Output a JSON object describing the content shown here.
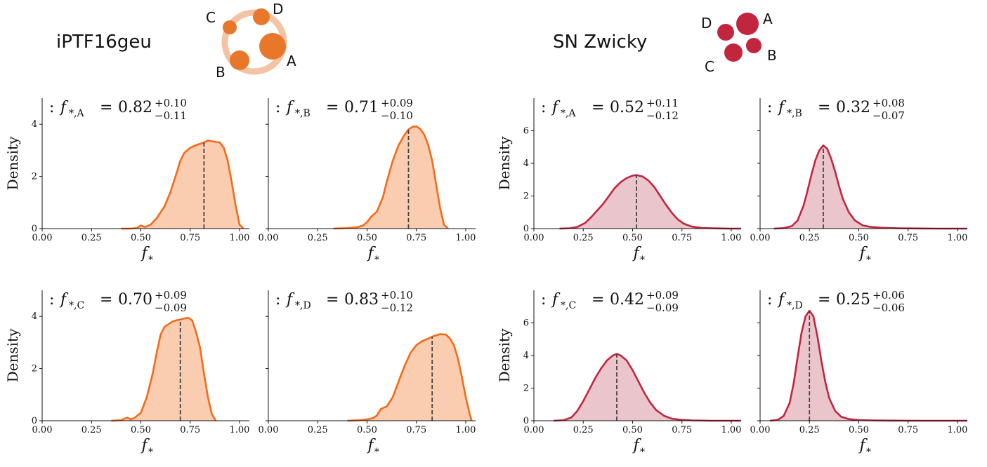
{
  "figure": {
    "groups": [
      {
        "title": "iPTF16geu",
        "color": "#f26b1d",
        "fill": "#fbcdb0",
        "diagram_color": "#e8772a",
        "ring_color": "#f3c3a3",
        "image_labels": [
          "A",
          "B",
          "C",
          "D"
        ]
      },
      {
        "title": "SN Zwicky",
        "color": "#c1263e",
        "fill": "#ebc5cc",
        "diagram_color": "#c1263e",
        "image_labels": [
          "A",
          "B",
          "C",
          "D"
        ]
      }
    ]
  },
  "chart_data": [
    {
      "type": "area",
      "group": "iPTF16geu",
      "image": "A",
      "annotation": {
        "prefix": ":",
        "symbol": "f",
        "sub": "*,A",
        "median": "0.82",
        "plus": "+0.10",
        "minus": "−0.11"
      },
      "median_value": 0.82,
      "xlabel": "f*",
      "ylabel": "Density",
      "xlim": [
        0,
        1.05
      ],
      "ylim": [
        0,
        5.0
      ],
      "xticks": [
        "0.00",
        "0.25",
        "0.50",
        "0.75",
        "1.00"
      ],
      "yticks": [
        "0",
        "2",
        "4"
      ],
      "x": [
        0.4,
        0.45,
        0.48,
        0.5,
        0.52,
        0.55,
        0.58,
        0.62,
        0.65,
        0.68,
        0.7,
        0.72,
        0.75,
        0.78,
        0.82,
        0.84,
        0.86,
        0.88,
        0.9,
        0.92,
        0.94,
        0.96,
        0.98,
        1.0,
        1.02
      ],
      "y": [
        0.0,
        0.0,
        0.02,
        0.12,
        0.06,
        0.15,
        0.4,
        0.85,
        1.4,
        2.1,
        2.6,
        2.9,
        3.1,
        3.2,
        3.3,
        3.38,
        3.35,
        3.32,
        3.3,
        3.1,
        2.6,
        1.8,
        0.9,
        0.15,
        0.0
      ]
    },
    {
      "type": "area",
      "group": "iPTF16geu",
      "image": "B",
      "annotation": {
        "prefix": ":",
        "symbol": "f",
        "sub": "*,B",
        "median": "0.71",
        "plus": "+0.09",
        "minus": "−0.10"
      },
      "median_value": 0.71,
      "xlabel": "f*",
      "ylabel": "",
      "xlim": [
        0,
        1.05
      ],
      "ylim": [
        0,
        5.0
      ],
      "xticks": [
        "0.00",
        "0.25",
        "0.50",
        "0.75",
        "1.00"
      ],
      "yticks": [],
      "x": [
        0.33,
        0.4,
        0.45,
        0.48,
        0.5,
        0.52,
        0.55,
        0.58,
        0.6,
        0.63,
        0.66,
        0.69,
        0.71,
        0.73,
        0.75,
        0.77,
        0.79,
        0.81,
        0.83,
        0.85,
        0.87,
        0.89,
        0.91
      ],
      "y": [
        0.0,
        0.02,
        0.05,
        0.12,
        0.25,
        0.45,
        0.65,
        1.2,
        1.8,
        2.6,
        3.2,
        3.6,
        3.8,
        3.9,
        3.92,
        3.82,
        3.6,
        3.2,
        2.6,
        1.7,
        0.8,
        0.15,
        0.0
      ]
    },
    {
      "type": "area",
      "group": "iPTF16geu",
      "image": "C",
      "annotation": {
        "prefix": ":",
        "symbol": "f",
        "sub": "*,C",
        "median": "0.70",
        "plus": "+0.09",
        "minus": "−0.09"
      },
      "median_value": 0.7,
      "xlabel": "f*",
      "ylabel": "Density",
      "xlim": [
        0,
        1.05
      ],
      "ylim": [
        0,
        5.0
      ],
      "xticks": [
        "0.00",
        "0.25",
        "0.50",
        "0.75",
        "1.00"
      ],
      "yticks": [
        "0",
        "2",
        "4"
      ],
      "x": [
        0.35,
        0.4,
        0.43,
        0.45,
        0.47,
        0.5,
        0.53,
        0.56,
        0.58,
        0.6,
        0.62,
        0.64,
        0.66,
        0.68,
        0.7,
        0.72,
        0.74,
        0.76,
        0.78,
        0.8,
        0.82,
        0.84,
        0.86,
        0.88
      ],
      "y": [
        0.0,
        0.02,
        0.12,
        0.05,
        0.12,
        0.3,
        0.9,
        1.8,
        2.6,
        3.3,
        3.6,
        3.7,
        3.8,
        3.85,
        3.88,
        3.92,
        3.95,
        3.85,
        3.4,
        2.8,
        1.8,
        0.9,
        0.25,
        0.0
      ]
    },
    {
      "type": "area",
      "group": "iPTF16geu",
      "image": "D",
      "annotation": {
        "prefix": ":",
        "symbol": "f",
        "sub": "*,D",
        "median": "0.83",
        "plus": "+0.10",
        "minus": "−0.12"
      },
      "median_value": 0.83,
      "xlabel": "f*",
      "ylabel": "",
      "xlim": [
        0,
        1.05
      ],
      "ylim": [
        0,
        5.0
      ],
      "xticks": [
        "0.00",
        "0.25",
        "0.50",
        "0.75",
        "1.00"
      ],
      "yticks": [],
      "x": [
        0.4,
        0.46,
        0.5,
        0.53,
        0.55,
        0.57,
        0.6,
        0.63,
        0.66,
        0.69,
        0.72,
        0.75,
        0.78,
        0.81,
        0.84,
        0.87,
        0.9,
        0.92,
        0.94,
        0.96,
        0.98,
        1.0,
        1.02,
        1.03
      ],
      "y": [
        0.0,
        0.02,
        0.05,
        0.1,
        0.2,
        0.45,
        0.55,
        0.9,
        1.5,
        2.1,
        2.6,
        2.9,
        3.05,
        3.15,
        3.25,
        3.32,
        3.3,
        3.15,
        2.9,
        2.4,
        1.7,
        0.9,
        0.25,
        0.0
      ]
    },
    {
      "type": "area",
      "group": "SN Zwicky",
      "image": "A",
      "annotation": {
        "prefix": ":",
        "symbol": "f",
        "sub": "*,A",
        "median": "0.52",
        "plus": "+0.11",
        "minus": "−0.12"
      },
      "median_value": 0.52,
      "xlabel": "f*",
      "ylabel": "Density",
      "xlim": [
        0,
        1.05
      ],
      "ylim": [
        0,
        8.0
      ],
      "xticks": [
        "0.00",
        "0.25",
        "0.50",
        "0.75",
        "1.00"
      ],
      "yticks": [
        "0",
        "2",
        "4",
        "6"
      ],
      "x": [
        0.13,
        0.18,
        0.22,
        0.26,
        0.29,
        0.32,
        0.35,
        0.38,
        0.41,
        0.44,
        0.47,
        0.5,
        0.52,
        0.55,
        0.58,
        0.61,
        0.64,
        0.67,
        0.7,
        0.73,
        0.76,
        0.8,
        0.85,
        0.9,
        0.95,
        1.0,
        1.05
      ],
      "y": [
        0.0,
        0.02,
        0.1,
        0.35,
        0.7,
        1.1,
        1.5,
        2.0,
        2.5,
        2.85,
        3.1,
        3.25,
        3.28,
        3.2,
        2.95,
        2.55,
        2.0,
        1.45,
        0.95,
        0.55,
        0.3,
        0.12,
        0.04,
        0.02,
        0.01,
        0.0,
        0.0
      ]
    },
    {
      "type": "area",
      "group": "SN Zwicky",
      "image": "B",
      "annotation": {
        "prefix": ":",
        "symbol": "f",
        "sub": "*,B",
        "median": "0.32",
        "plus": "+0.08",
        "minus": "−0.07"
      },
      "median_value": 0.32,
      "xlabel": "f*",
      "ylabel": "",
      "xlim": [
        0,
        1.05
      ],
      "ylim": [
        0,
        8.0
      ],
      "xticks": [
        "0.00",
        "0.25",
        "0.50",
        "0.75",
        "1.00"
      ],
      "yticks": [],
      "x": [
        0.07,
        0.12,
        0.16,
        0.19,
        0.22,
        0.24,
        0.26,
        0.28,
        0.3,
        0.32,
        0.34,
        0.36,
        0.38,
        0.4,
        0.42,
        0.45,
        0.48,
        0.52,
        0.56,
        0.62,
        0.7,
        0.8,
        0.9,
        1.05
      ],
      "y": [
        0.0,
        0.03,
        0.15,
        0.5,
        1.4,
        2.3,
        3.3,
        4.2,
        4.8,
        5.1,
        4.9,
        4.3,
        3.5,
        2.6,
        1.8,
        1.0,
        0.5,
        0.2,
        0.1,
        0.05,
        0.02,
        0.01,
        0.0,
        0.0
      ]
    },
    {
      "type": "area",
      "group": "SN Zwicky",
      "image": "C",
      "annotation": {
        "prefix": ":",
        "symbol": "f",
        "sub": "*,C",
        "median": "0.42",
        "plus": "+0.09",
        "minus": "−0.09"
      },
      "median_value": 0.42,
      "xlabel": "f*",
      "ylabel": "Density",
      "xlim": [
        0,
        1.05
      ],
      "ylim": [
        0,
        8.0
      ],
      "xticks": [
        "0.00",
        "0.25",
        "0.50",
        "0.75",
        "1.00"
      ],
      "yticks": [
        "0",
        "2",
        "4",
        "6"
      ],
      "x": [
        0.1,
        0.15,
        0.19,
        0.22,
        0.25,
        0.28,
        0.31,
        0.34,
        0.37,
        0.4,
        0.42,
        0.44,
        0.47,
        0.5,
        0.53,
        0.56,
        0.59,
        0.62,
        0.66,
        0.7,
        0.75,
        0.8,
        0.9,
        1.05
      ],
      "y": [
        0.0,
        0.03,
        0.2,
        0.6,
        1.2,
        1.9,
        2.6,
        3.2,
        3.7,
        4.0,
        4.1,
        4.0,
        3.7,
        3.1,
        2.4,
        1.7,
        1.1,
        0.65,
        0.3,
        0.12,
        0.05,
        0.02,
        0.0,
        0.0
      ]
    },
    {
      "type": "area",
      "group": "SN Zwicky",
      "image": "D",
      "annotation": {
        "prefix": ":",
        "symbol": "f",
        "sub": "*,D",
        "median": "0.25",
        "plus": "+0.06",
        "minus": "−0.06"
      },
      "median_value": 0.25,
      "xlabel": "f*",
      "ylabel": "",
      "xlim": [
        0,
        1.05
      ],
      "ylim": [
        0,
        8.0
      ],
      "xticks": [
        "0.00",
        "0.25",
        "0.50",
        "0.75",
        "1.00"
      ],
      "yticks": [],
      "x": [
        0.05,
        0.09,
        0.12,
        0.15,
        0.17,
        0.19,
        0.21,
        0.23,
        0.25,
        0.27,
        0.29,
        0.31,
        0.33,
        0.35,
        0.38,
        0.41,
        0.45,
        0.5,
        0.56,
        0.65,
        0.8,
        1.05
      ],
      "y": [
        0.0,
        0.05,
        0.3,
        1.1,
        2.3,
        3.9,
        5.4,
        6.4,
        6.75,
        6.4,
        5.2,
        3.7,
        2.4,
        1.4,
        0.6,
        0.25,
        0.1,
        0.04,
        0.02,
        0.01,
        0.0,
        0.0
      ]
    }
  ]
}
